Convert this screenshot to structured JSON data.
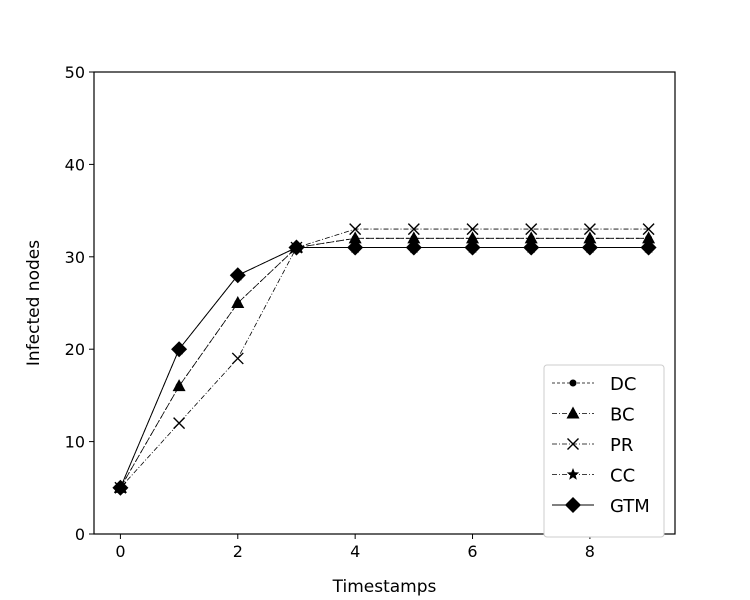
{
  "chart_data": {
    "type": "line",
    "title": "",
    "xlabel": "Timestamps",
    "ylabel": "Infected nodes",
    "xlim": [
      -0.45,
      9.45
    ],
    "ylim": [
      0,
      50
    ],
    "xticks": [
      0,
      2,
      4,
      6,
      8
    ],
    "yticks": [
      0,
      10,
      20,
      30,
      40,
      50
    ],
    "grid": false,
    "legend_position": "lower-right",
    "x": [
      0,
      1,
      2,
      3,
      4,
      5,
      6,
      7,
      8,
      9
    ],
    "series": [
      {
        "name": "DC",
        "marker": "dot",
        "line": "dashed",
        "values": [
          5,
          16,
          25,
          31,
          32,
          32,
          32,
          32,
          32,
          32
        ]
      },
      {
        "name": "BC",
        "marker": "triangle",
        "line": "dashdot",
        "values": [
          5,
          16,
          25,
          31,
          32,
          32,
          32,
          32,
          32,
          32
        ]
      },
      {
        "name": "PR",
        "marker": "x",
        "line": "dashdot",
        "values": [
          5,
          12,
          19,
          31,
          33,
          33,
          33,
          33,
          33,
          33
        ]
      },
      {
        "name": "CC",
        "marker": "star",
        "line": "dashdot",
        "values": [
          5,
          20,
          28,
          31,
          31,
          31,
          31,
          31,
          31,
          31
        ]
      },
      {
        "name": "GTM",
        "marker": "diamond",
        "line": "solid",
        "values": [
          5,
          20,
          28,
          31,
          31,
          31,
          31,
          31,
          31,
          31
        ]
      }
    ]
  }
}
